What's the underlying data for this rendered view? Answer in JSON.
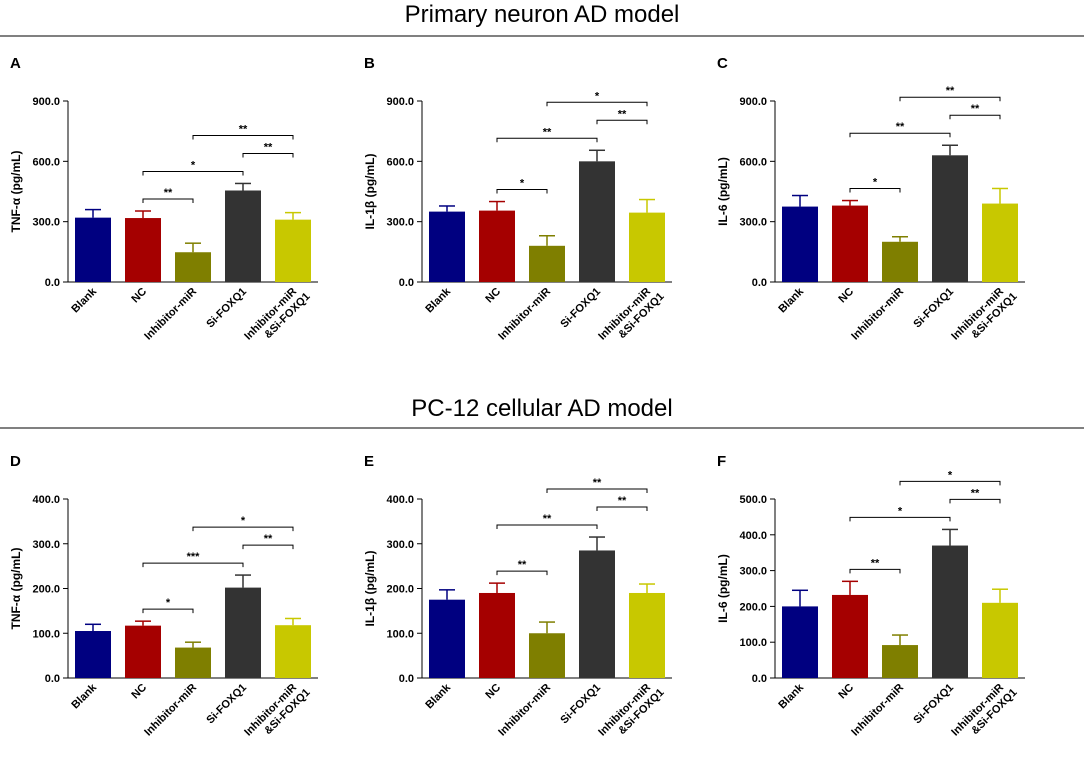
{
  "sections": [
    "Primary neuron AD model",
    "PC-12 cellular AD model"
  ],
  "chart_data": [
    {
      "panel": "A",
      "type": "bar",
      "ylabel": "TNF-α (pg/mL)",
      "categories": [
        "Blank",
        "NC",
        "Inhibitor-miR",
        "Si-FOXQ1",
        "Inhibitor-miR\n&Si-FOXQ1"
      ],
      "values": [
        320,
        318,
        148,
        455,
        310
      ],
      "errors": [
        40,
        35,
        45,
        35,
        35
      ],
      "colors": [
        "#000080",
        "#a50000",
        "#7f7f00",
        "#333333",
        "#c8c800"
      ],
      "ylim": [
        0,
        900
      ],
      "yticks": [
        {
          "value": 0,
          "label": "0.0"
        },
        {
          "value": 300,
          "label": "300.0"
        },
        {
          "value": 600,
          "label": "600.0"
        },
        {
          "value": 900,
          "label": "900.0"
        }
      ],
      "annotations": [
        {
          "from": 1,
          "to": 2,
          "label": "**"
        },
        {
          "from": 1,
          "to": 3,
          "label": "*"
        },
        {
          "from": 3,
          "to": 4,
          "label": "**"
        },
        {
          "from": 2,
          "to": 4,
          "label": "**"
        }
      ]
    },
    {
      "panel": "B",
      "type": "bar",
      "ylabel": "IL-1β (pg/mL)",
      "categories": [
        "Blank",
        "NC",
        "Inhibitor-miR",
        "Si-FOXQ1",
        "Inhibitor-miR\n&Si-FOXQ1"
      ],
      "values": [
        350,
        355,
        180,
        600,
        345
      ],
      "errors": [
        28,
        45,
        50,
        55,
        65
      ],
      "colors": [
        "#000080",
        "#a50000",
        "#7f7f00",
        "#333333",
        "#c8c800"
      ],
      "ylim": [
        0,
        900
      ],
      "yticks": [
        {
          "value": 0,
          "label": "0.0"
        },
        {
          "value": 300,
          "label": "300.0"
        },
        {
          "value": 600,
          "label": "600.0"
        },
        {
          "value": 900,
          "label": "900.0"
        }
      ],
      "annotations": [
        {
          "from": 1,
          "to": 2,
          "label": "*"
        },
        {
          "from": 1,
          "to": 3,
          "label": "**"
        },
        {
          "from": 3,
          "to": 4,
          "label": "**"
        },
        {
          "from": 2,
          "to": 4,
          "label": "*"
        }
      ]
    },
    {
      "panel": "C",
      "type": "bar",
      "ylabel": "IL-6 (pg/mL)",
      "categories": [
        "Blank",
        "NC",
        "Inhibitor-miR",
        "Si-FOXQ1",
        "Inhibitor-miR\n&Si-FOXQ1"
      ],
      "values": [
        375,
        380,
        200,
        630,
        390
      ],
      "errors": [
        55,
        25,
        25,
        50,
        75
      ],
      "colors": [
        "#000080",
        "#a50000",
        "#7f7f00",
        "#333333",
        "#c8c800"
      ],
      "ylim": [
        0,
        900
      ],
      "yticks": [
        {
          "value": 0,
          "label": "0.0"
        },
        {
          "value": 300,
          "label": "300.0"
        },
        {
          "value": 600,
          "label": "600.0"
        },
        {
          "value": 900,
          "label": "900.0"
        }
      ],
      "annotations": [
        {
          "from": 1,
          "to": 2,
          "label": "*"
        },
        {
          "from": 1,
          "to": 3,
          "label": "**"
        },
        {
          "from": 3,
          "to": 4,
          "label": "**"
        },
        {
          "from": 2,
          "to": 4,
          "label": "**"
        }
      ]
    },
    {
      "panel": "D",
      "type": "bar",
      "ylabel": "TNF-α (pg/mL)",
      "categories": [
        "Blank",
        "NC",
        "Inhibitor-miR",
        "Si-FOXQ1",
        "Inhibitor-miR\n&Si-FOXQ1"
      ],
      "values": [
        105,
        117,
        68,
        202,
        118
      ],
      "errors": [
        15,
        10,
        12,
        28,
        15
      ],
      "colors": [
        "#000080",
        "#a50000",
        "#7f7f00",
        "#333333",
        "#c8c800"
      ],
      "ylim": [
        0,
        400
      ],
      "yticks": [
        {
          "value": 0,
          "label": "0.0"
        },
        {
          "value": 100,
          "label": "100.0"
        },
        {
          "value": 200,
          "label": "200.0"
        },
        {
          "value": 300,
          "label": "300.0"
        },
        {
          "value": 400,
          "label": "400.0"
        }
      ],
      "annotations": [
        {
          "from": 1,
          "to": 2,
          "label": "*"
        },
        {
          "from": 1,
          "to": 3,
          "label": "***"
        },
        {
          "from": 3,
          "to": 4,
          "label": "**"
        },
        {
          "from": 2,
          "to": 4,
          "label": "*"
        }
      ]
    },
    {
      "panel": "E",
      "type": "bar",
      "ylabel": "IL-1β (pg/mL)",
      "categories": [
        "Blank",
        "NC",
        "Inhibitor-miR",
        "Si-FOXQ1",
        "Inhibitor-miR\n&Si-FOXQ1"
      ],
      "values": [
        175,
        190,
        100,
        285,
        190
      ],
      "errors": [
        22,
        22,
        25,
        30,
        20
      ],
      "colors": [
        "#000080",
        "#a50000",
        "#7f7f00",
        "#333333",
        "#c8c800"
      ],
      "ylim": [
        0,
        400
      ],
      "yticks": [
        {
          "value": 0,
          "label": "0.0"
        },
        {
          "value": 100,
          "label": "100.0"
        },
        {
          "value": 200,
          "label": "200.0"
        },
        {
          "value": 300,
          "label": "300.0"
        },
        {
          "value": 400,
          "label": "400.0"
        }
      ],
      "annotations": [
        {
          "from": 1,
          "to": 2,
          "label": "**"
        },
        {
          "from": 1,
          "to": 3,
          "label": "**"
        },
        {
          "from": 3,
          "to": 4,
          "label": "**"
        },
        {
          "from": 2,
          "to": 4,
          "label": "**"
        }
      ]
    },
    {
      "panel": "F",
      "type": "bar",
      "ylabel": "IL-6 (pg/mL)",
      "categories": [
        "Blank",
        "NC",
        "Inhibitor-miR",
        "Si-FOXQ1",
        "Inhibitor-miR\n&Si-FOXQ1"
      ],
      "values": [
        200,
        232,
        92,
        370,
        210
      ],
      "errors": [
        45,
        38,
        28,
        45,
        38
      ],
      "colors": [
        "#000080",
        "#a50000",
        "#7f7f00",
        "#333333",
        "#c8c800"
      ],
      "ylim": [
        0,
        500
      ],
      "yticks": [
        {
          "value": 0,
          "label": "0.0"
        },
        {
          "value": 100,
          "label": "100.0"
        },
        {
          "value": 200,
          "label": "200.0"
        },
        {
          "value": 300,
          "label": "300.0"
        },
        {
          "value": 400,
          "label": "400.0"
        },
        {
          "value": 500,
          "label": "500.0"
        }
      ],
      "annotations": [
        {
          "from": 1,
          "to": 2,
          "label": "**"
        },
        {
          "from": 1,
          "to": 3,
          "label": "*"
        },
        {
          "from": 3,
          "to": 4,
          "label": "**"
        },
        {
          "from": 2,
          "to": 4,
          "label": "*"
        }
      ]
    }
  ]
}
